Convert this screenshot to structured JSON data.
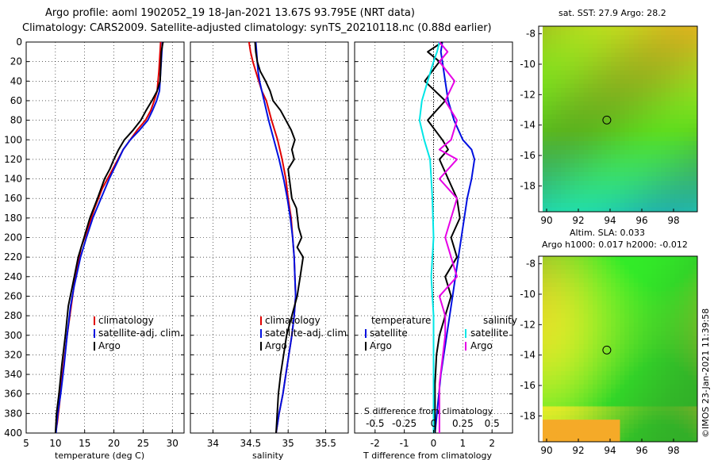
{
  "title": {
    "line1": "Argo profile: aoml 1902052_19 18-Jan-2021 13.67S 93.795E (NRT data)",
    "line2": "Climatology: CARS2009. Satellite-adjusted climatology: synTS_20210118.nc (0.88d earlier)"
  },
  "colors": {
    "climatology": "#e00000",
    "satellite": "#0010e0",
    "argo": "#000000",
    "cyan": "#00e6e6",
    "magenta": "#e600e6"
  },
  "depth_ticks": [
    "0",
    "20",
    "40",
    "60",
    "80",
    "100",
    "120",
    "140",
    "160",
    "180",
    "200",
    "220",
    "240",
    "260",
    "280",
    "300",
    "320",
    "340",
    "360",
    "380",
    "400"
  ],
  "chart_data": [
    {
      "type": "line",
      "name": "temperature-profile",
      "xlabel": "temperature (deg C)",
      "ylabel": "depth",
      "xlim": [
        5,
        32
      ],
      "ylim": [
        400,
        0
      ],
      "xticks": [
        "5",
        "10",
        "15",
        "20",
        "25",
        "30"
      ],
      "legend": [
        "climatology",
        "satellite-adj. clim.",
        "Argo"
      ],
      "series": [
        {
          "name": "climatology",
          "x": [
            28,
            27.9,
            27.7,
            27.4,
            26.9,
            26.3,
            25.4,
            24,
            21.6,
            19.8,
            18,
            16.7,
            15.6,
            14.4,
            13.4,
            12.7,
            12,
            11.4,
            11,
            10.7,
            10.3,
            10
          ],
          "depth": [
            0,
            10,
            30,
            50,
            60,
            70,
            80,
            90,
            110,
            130,
            150,
            170,
            190,
            210,
            240,
            270,
            300,
            330,
            350,
            370,
            390,
            400
          ]
        },
        {
          "name": "satellite-adj. clim.",
          "x": [
            28.3,
            28.2,
            28,
            27.8,
            27.3,
            26.6,
            25.8,
            24.4,
            22.8,
            21.6,
            20.8,
            20,
            19.2,
            17.8,
            16.4,
            15.3,
            14.3,
            13.2,
            12.6,
            12,
            11.5,
            10.9,
            10.4,
            10.1
          ],
          "depth": [
            0,
            10,
            30,
            50,
            60,
            70,
            80,
            90,
            100,
            110,
            120,
            130,
            140,
            160,
            180,
            200,
            220,
            250,
            270,
            300,
            330,
            360,
            380,
            400
          ]
        },
        {
          "name": "Argo",
          "x": [
            28.4,
            28.1,
            27.9,
            27.4,
            26.5,
            25.5,
            24.6,
            23.3,
            21.8,
            20.8,
            20,
            19.3,
            18.4,
            17.2,
            15.9,
            14.9,
            13.9,
            12.9,
            12.2,
            11.7,
            11.1,
            10.6,
            10.2,
            10
          ],
          "depth": [
            0,
            10,
            40,
            50,
            60,
            70,
            80,
            90,
            100,
            110,
            120,
            130,
            140,
            160,
            180,
            200,
            220,
            250,
            270,
            300,
            330,
            360,
            380,
            400
          ]
        }
      ]
    },
    {
      "type": "line",
      "name": "salinity-profile",
      "xlabel": "salinity",
      "ylabel": "depth",
      "xlim": [
        33.7,
        35.8
      ],
      "ylim": [
        400,
        0
      ],
      "xticks": [
        "34",
        "34.5",
        "35",
        "35.5"
      ],
      "legend": [
        "climatology",
        "satellite-adj. clim.",
        "Argo"
      ],
      "series": [
        {
          "name": "climatology",
          "x": [
            34.48,
            34.5,
            34.53,
            34.57,
            34.61,
            34.65,
            34.71,
            34.78,
            34.86,
            34.92,
            34.97,
            35,
            35.04,
            35.06,
            35.08,
            35.09,
            35.1,
            35.08,
            35.05,
            35.01,
            34.97,
            34.93,
            34.88,
            34.84
          ],
          "depth": [
            0,
            10,
            20,
            30,
            40,
            50,
            60,
            80,
            100,
            120,
            140,
            160,
            180,
            200,
            220,
            240,
            260,
            280,
            300,
            320,
            340,
            360,
            380,
            400
          ]
        },
        {
          "name": "satellite-adj. clim.",
          "x": [
            34.57,
            34.58,
            34.59,
            34.6,
            34.62,
            34.65,
            34.68,
            34.74,
            34.81,
            34.88,
            34.94,
            34.99,
            35.03,
            35.06,
            35.08,
            35.09,
            35.1,
            35.08,
            35.05,
            35.01,
            34.97,
            34.93,
            34.88,
            34.84
          ],
          "depth": [
            0,
            10,
            20,
            30,
            40,
            50,
            60,
            80,
            100,
            120,
            140,
            160,
            180,
            200,
            220,
            240,
            260,
            280,
            300,
            320,
            340,
            360,
            380,
            400
          ]
        },
        {
          "name": "Argo",
          "x": [
            34.56,
            34.57,
            34.59,
            34.63,
            34.7,
            34.76,
            34.8,
            34.9,
            35.04,
            35.09,
            35.05,
            35.08,
            35.0,
            35.05,
            35.11,
            35.14,
            35.18,
            35.12,
            35.2,
            35.16,
            35.12,
            35.05,
            34.98,
            34.94,
            34.9,
            34.87,
            34.84
          ],
          "depth": [
            0,
            10,
            20,
            30,
            40,
            50,
            60,
            70,
            90,
            100,
            110,
            120,
            130,
            160,
            170,
            190,
            200,
            210,
            220,
            240,
            260,
            280,
            300,
            320,
            340,
            360,
            400
          ]
        }
      ]
    },
    {
      "type": "line",
      "name": "difference-profile",
      "xlabel": "T difference from climatology",
      "x2label": "S difference from climatology",
      "xlim": [
        -2.7,
        2.7
      ],
      "ylim": [
        400,
        0
      ],
      "xticks": [
        "-2",
        "-1",
        "0",
        "1",
        "2"
      ],
      "x2ticks": [
        "-0.5",
        "-0.25",
        "0",
        "0.25",
        "0.5"
      ],
      "legend_left_title": "temperature",
      "legend_right_title": "salinity",
      "legend_left": [
        "satellite",
        "Argo"
      ],
      "legend_right": [
        "satellite",
        "Argo"
      ],
      "series": [
        {
          "name": "T satellite",
          "x": [
            0.3,
            0.25,
            0.3,
            0.4,
            0.5,
            0.7,
            1.0,
            1.3,
            1.4,
            1.3,
            1.15,
            1.05,
            0.95,
            0.85,
            0.75,
            0.65,
            0.55,
            0.45,
            0.35,
            0.25,
            0.15,
            0.05
          ],
          "depth": [
            0,
            10,
            20,
            40,
            60,
            80,
            100,
            110,
            120,
            140,
            160,
            180,
            200,
            220,
            240,
            260,
            280,
            300,
            320,
            340,
            370,
            400
          ]
        },
        {
          "name": "T Argo",
          "x": [
            0.3,
            -0.2,
            0.2,
            -0.3,
            0.4,
            -0.2,
            0.3,
            0.5,
            0.2,
            0.5,
            0.8,
            0.9,
            0.6,
            0.8,
            0.4,
            0.6,
            0.4,
            0.2,
            0.1,
            0.05,
            0.05
          ],
          "depth": [
            0,
            10,
            20,
            40,
            60,
            80,
            100,
            110,
            120,
            140,
            160,
            180,
            200,
            220,
            240,
            260,
            280,
            300,
            320,
            350,
            400
          ]
        },
        {
          "name": "S satellite",
          "x": [
            0.05,
            0.03,
            0.0,
            -0.05,
            -0.1,
            -0.12,
            -0.08,
            -0.03,
            -0.02,
            -0.01,
            0.0,
            -0.02,
            0.0,
            0.0,
            0.0,
            0.0
          ],
          "depth": [
            0,
            10,
            20,
            40,
            60,
            80,
            100,
            120,
            140,
            160,
            200,
            240,
            280,
            320,
            360,
            400
          ]
        },
        {
          "name": "S Argo",
          "x": [
            0.05,
            0.12,
            0.05,
            0.18,
            0.1,
            0.2,
            0.15,
            0.05,
            0.2,
            0.05,
            0.2,
            0.15,
            0.1,
            0.15,
            0.2,
            0.05,
            0.1,
            0.1,
            0.05,
            0.05
          ],
          "depth": [
            0,
            10,
            20,
            40,
            60,
            80,
            100,
            110,
            120,
            140,
            160,
            180,
            200,
            220,
            240,
            260,
            280,
            300,
            350,
            400
          ]
        }
      ]
    },
    {
      "type": "heatmap",
      "name": "sst-map",
      "title": "sat. SST: 27.9 Argo: 28.2",
      "xlim": [
        89.5,
        99.5
      ],
      "ylim": [
        -19.7,
        -7.5
      ],
      "xticks": [
        "90",
        "92",
        "94",
        "96",
        "98"
      ],
      "yticks": [
        "-8",
        "-10",
        "-12",
        "-14",
        "-16",
        "-18"
      ],
      "marker": {
        "lon": 93.795,
        "lat": -13.67
      }
    },
    {
      "type": "heatmap",
      "name": "sla-map",
      "title": "Altim. SLA: 0.033",
      "subtitle": "Argo h1000: 0.017 h2000: -0.012",
      "xlim": [
        89.5,
        99.5
      ],
      "ylim": [
        -19.7,
        -7.5
      ],
      "xticks": [
        "90",
        "92",
        "94",
        "96",
        "98"
      ],
      "yticks": [
        "-8",
        "-10",
        "-12",
        "-14",
        "-16",
        "-18"
      ],
      "marker": {
        "lon": 93.795,
        "lat": -13.67
      }
    }
  ],
  "watermark": "©IMOS 23-Jan-2021 11:39:58"
}
